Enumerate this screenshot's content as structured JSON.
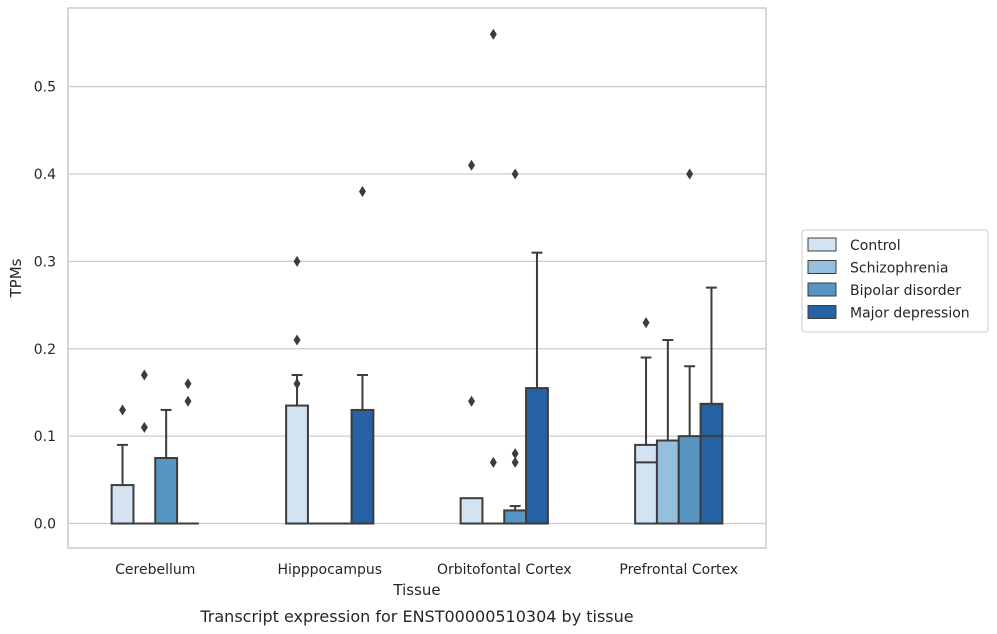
{
  "chart_data": {
    "type": "box",
    "title": "",
    "caption": "Transcript expression for ENST00000510304 by tissue",
    "xlabel": "Tissue",
    "ylabel": "TPMs",
    "ylim": [
      -0.028,
      0.59
    ],
    "yticks": [
      0.0,
      0.1,
      0.2,
      0.3,
      0.4,
      0.5
    ],
    "ytick_labels": [
      "0.0",
      "0.1",
      "0.2",
      "0.3",
      "0.4",
      "0.5"
    ],
    "grid": "horizontal",
    "legend_position": "right",
    "categories": [
      "Cerebellum",
      "Hipppocampus",
      "Orbitofontal Cortex",
      "Prefrontal Cortex"
    ],
    "series": [
      {
        "name": "Control",
        "color": "#d3e3f2",
        "boxes": [
          {
            "q1": 0.0,
            "median": 0.0,
            "q3": 0.044,
            "whisker_low": 0.0,
            "whisker_high": 0.09,
            "outliers": [
              0.13
            ]
          },
          {
            "q1": 0.0,
            "median": 0.0,
            "q3": 0.135,
            "whisker_low": 0.0,
            "whisker_high": 0.17,
            "outliers": [
              0.16,
              0.21,
              0.3
            ]
          },
          {
            "q1": 0.0,
            "median": 0.0,
            "q3": 0.029,
            "whisker_low": 0.0,
            "whisker_high": 0.029,
            "outliers": [
              0.14,
              0.41
            ]
          },
          {
            "q1": 0.0,
            "median": 0.07,
            "q3": 0.09,
            "whisker_low": 0.0,
            "whisker_high": 0.19,
            "outliers": [
              0.23
            ]
          }
        ]
      },
      {
        "name": "Schizophrenia",
        "color": "#94c0dd",
        "boxes": [
          {
            "q1": 0.0,
            "median": 0.0,
            "q3": 0.0,
            "whisker_low": 0.0,
            "whisker_high": 0.0,
            "outliers": [
              0.11,
              0.17
            ]
          },
          {
            "q1": 0.0,
            "median": 0.0,
            "q3": 0.0,
            "whisker_low": 0.0,
            "whisker_high": 0.0,
            "outliers": []
          },
          {
            "q1": 0.0,
            "median": 0.0,
            "q3": 0.0,
            "whisker_low": 0.0,
            "whisker_high": 0.0,
            "outliers": [
              0.07,
              0.56
            ]
          },
          {
            "q1": 0.0,
            "median": 0.0,
            "q3": 0.095,
            "whisker_low": 0.0,
            "whisker_high": 0.21,
            "outliers": []
          }
        ]
      },
      {
        "name": "Bipolar disorder",
        "color": "#5796c3",
        "boxes": [
          {
            "q1": 0.0,
            "median": 0.0,
            "q3": 0.075,
            "whisker_low": 0.0,
            "whisker_high": 0.13,
            "outliers": []
          },
          {
            "q1": 0.0,
            "median": 0.0,
            "q3": 0.0,
            "whisker_low": 0.0,
            "whisker_high": 0.0,
            "outliers": []
          },
          {
            "q1": 0.0,
            "median": 0.0,
            "q3": 0.015,
            "whisker_low": 0.0,
            "whisker_high": 0.02,
            "outliers": [
              0.07,
              0.08,
              0.4
            ]
          },
          {
            "q1": 0.0,
            "median": 0.0,
            "q3": 0.1,
            "whisker_low": 0.0,
            "whisker_high": 0.18,
            "outliers": [
              0.4
            ]
          }
        ]
      },
      {
        "name": "Major depression",
        "color": "#2562a4",
        "boxes": [
          {
            "q1": 0.0,
            "median": 0.0,
            "q3": 0.0,
            "whisker_low": 0.0,
            "whisker_high": 0.0,
            "outliers": [
              0.14,
              0.16
            ]
          },
          {
            "q1": 0.0,
            "median": 0.0,
            "q3": 0.13,
            "whisker_low": 0.0,
            "whisker_high": 0.17,
            "outliers": [
              0.38
            ]
          },
          {
            "q1": 0.0,
            "median": 0.0,
            "q3": 0.155,
            "whisker_low": 0.0,
            "whisker_high": 0.31,
            "outliers": []
          },
          {
            "q1": 0.0,
            "median": 0.1,
            "q3": 0.137,
            "whisker_low": 0.0,
            "whisker_high": 0.27,
            "outliers": []
          }
        ]
      }
    ]
  }
}
